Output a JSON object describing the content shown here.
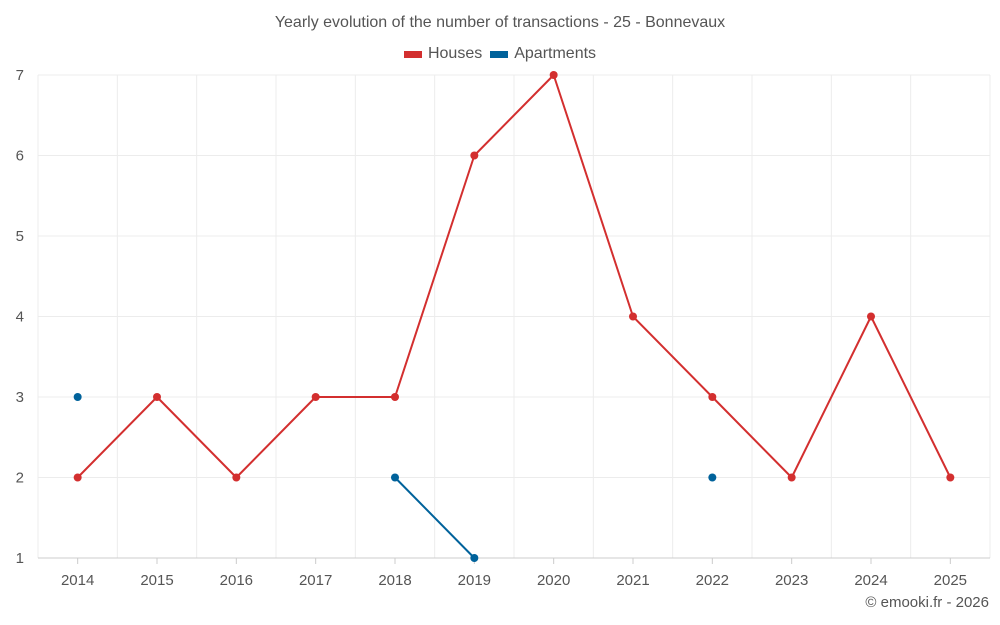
{
  "chart_data": {
    "type": "line",
    "title": "Yearly evolution of the number of transactions - 25 - Bonnevaux",
    "categories": [
      "2014",
      "2015",
      "2016",
      "2017",
      "2018",
      "2019",
      "2020",
      "2021",
      "2022",
      "2023",
      "2024",
      "2025"
    ],
    "series": [
      {
        "name": "Houses",
        "color": "#d32f2f",
        "values": [
          2,
          3,
          2,
          3,
          3,
          6,
          7,
          4,
          3,
          2,
          4,
          2
        ]
      },
      {
        "name": "Apartments",
        "color": "#00629b",
        "values": [
          3,
          null,
          null,
          null,
          2,
          1,
          null,
          null,
          2,
          null,
          null,
          null
        ]
      }
    ],
    "yticks": [
      1,
      2,
      3,
      4,
      5,
      6,
      7
    ],
    "ylim": [
      1,
      7
    ],
    "xlabel": "",
    "ylabel": "",
    "grid": true,
    "legend": "top-center"
  },
  "footer": {
    "copyright": "© emooki.fr - 2026"
  }
}
